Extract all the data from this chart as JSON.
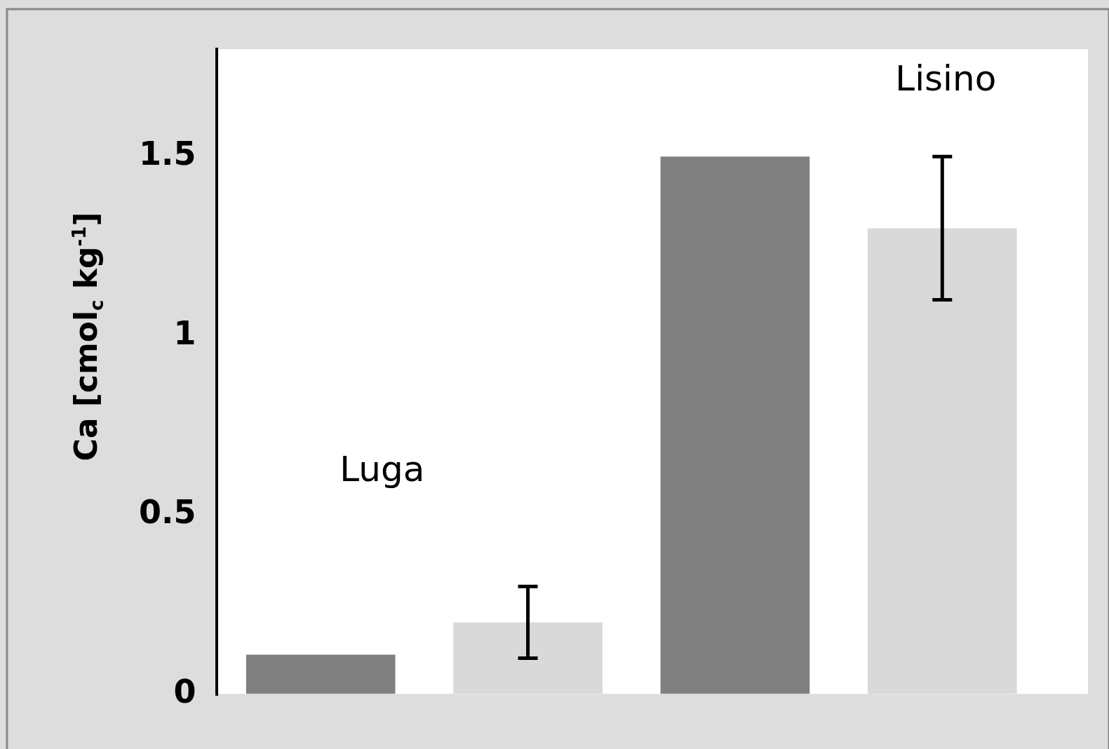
{
  "chart_data": {
    "type": "bar",
    "ylabel": "Ca [cmol$_{c}$ kg$^{-1}$]",
    "categories": [
      null,
      null,
      null,
      null
    ],
    "values": [
      0.11,
      0.2,
      1.5,
      1.3
    ],
    "colors": [
      "#808080",
      "#d9d9d9",
      "#808080",
      "#d9d9d9"
    ],
    "errors": [
      null,
      [
        0.1,
        0.3
      ],
      null,
      [
        1.1,
        1.5
      ]
    ],
    "ylim": [
      0,
      1.8
    ],
    "yticks": [
      0,
      0.5,
      1,
      1.5
    ],
    "grid": false,
    "legend": false,
    "annotations": [
      "Luga",
      "Lisino"
    ]
  }
}
